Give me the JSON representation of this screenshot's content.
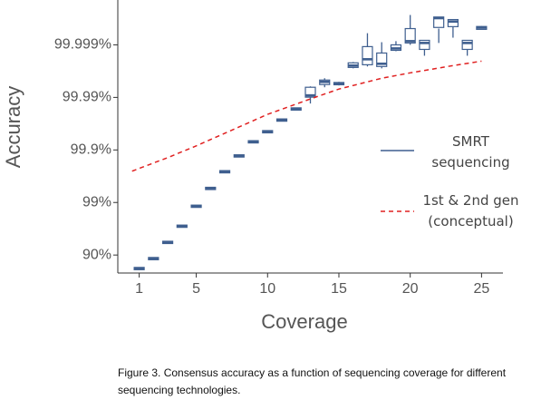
{
  "chart_data": {
    "type": "box",
    "xlabel": "Coverage",
    "ylabel": "Accuracy",
    "caption": "Figure 3.  Consensus accuracy as a function of sequencing coverage for different sequencing technologies.",
    "yscale": "phred",
    "xlim": [
      -0.5,
      26.5
    ],
    "ylim": [
      78,
      99.99986
    ],
    "xticks": [
      1,
      5,
      10,
      15,
      20,
      25
    ],
    "yticks": [
      {
        "value": 90,
        "label": "90%"
      },
      {
        "value": 99,
        "label": "99%"
      },
      {
        "value": 99.9,
        "label": "99.9%"
      },
      {
        "value": 99.99,
        "label": "99.99%"
      },
      {
        "value": 99.999,
        "label": "99.999%"
      }
    ],
    "series": [
      {
        "name": "SMRT sequencing",
        "color": "#3f5f8f",
        "type": "box",
        "x": [
          1,
          2,
          3,
          4,
          5,
          6,
          7,
          8,
          9,
          10,
          11,
          12,
          13,
          14,
          15,
          16,
          17,
          18,
          19,
          20,
          21,
          22,
          23,
          24,
          25
        ],
        "low": [
          81.9,
          88.3,
          94.25,
          97.17,
          98.82,
          99.46,
          99.74,
          99.87,
          99.93,
          99.955,
          99.973,
          99.9834,
          99.98694,
          99.99359,
          99.99408,
          99.9972,
          99.99742,
          99.9972,
          99.99868,
          99.999,
          99.99839,
          99.99908,
          99.99927,
          99.99839,
          99.99949
        ],
        "q1": [
          81.9,
          88.3,
          94.25,
          97.17,
          98.82,
          99.46,
          99.74,
          99.87,
          99.93,
          99.955,
          99.973,
          99.9834,
          99.9901,
          99.99431,
          99.99431,
          99.99731,
          99.99761,
          99.99742,
          99.99873,
          99.99908,
          99.99878,
          99.99951,
          99.99955,
          99.99878,
          99.99949
        ],
        "median": [
          81.9,
          88.3,
          94.25,
          97.17,
          98.82,
          99.46,
          99.74,
          99.87,
          99.93,
          99.955,
          99.973,
          99.9834,
          99.99085,
          99.99494,
          99.99453,
          99.99752,
          99.99812,
          99.99771,
          99.99883,
          99.99915,
          99.99908,
          99.99969,
          99.99964,
          99.99908,
          99.99953
        ],
        "q3": [
          81.9,
          88.3,
          94.25,
          97.17,
          98.82,
          99.46,
          99.74,
          99.87,
          99.93,
          99.955,
          99.973,
          99.9834,
          99.99359,
          99.99533,
          99.99474,
          99.9978,
          99.99892,
          99.99857,
          99.999,
          99.99951,
          99.99918,
          99.99969,
          99.99967,
          99.99918,
          99.99955
        ],
        "high": [
          81.9,
          88.3,
          94.25,
          97.17,
          98.82,
          99.46,
          99.74,
          99.87,
          99.93,
          99.955,
          99.973,
          99.9834,
          99.99384,
          99.99568,
          99.99494,
          99.99788,
          99.9994,
          99.99911,
          99.99915,
          99.99973,
          99.99918,
          99.99969,
          99.99967,
          99.99918,
          99.99956
        ]
      },
      {
        "name": "1st & 2nd gen (conceptual)",
        "color": "#e02020",
        "type": "line",
        "dash": true,
        "x": [
          0.5,
          3,
          5,
          8,
          10,
          13,
          15,
          18,
          20,
          23,
          25
        ],
        "values": [
          99.747,
          99.86,
          99.9163,
          99.9635,
          99.979,
          99.9893,
          99.99306,
          99.99568,
          99.99659,
          99.99752,
          99.99796
        ]
      }
    ]
  }
}
